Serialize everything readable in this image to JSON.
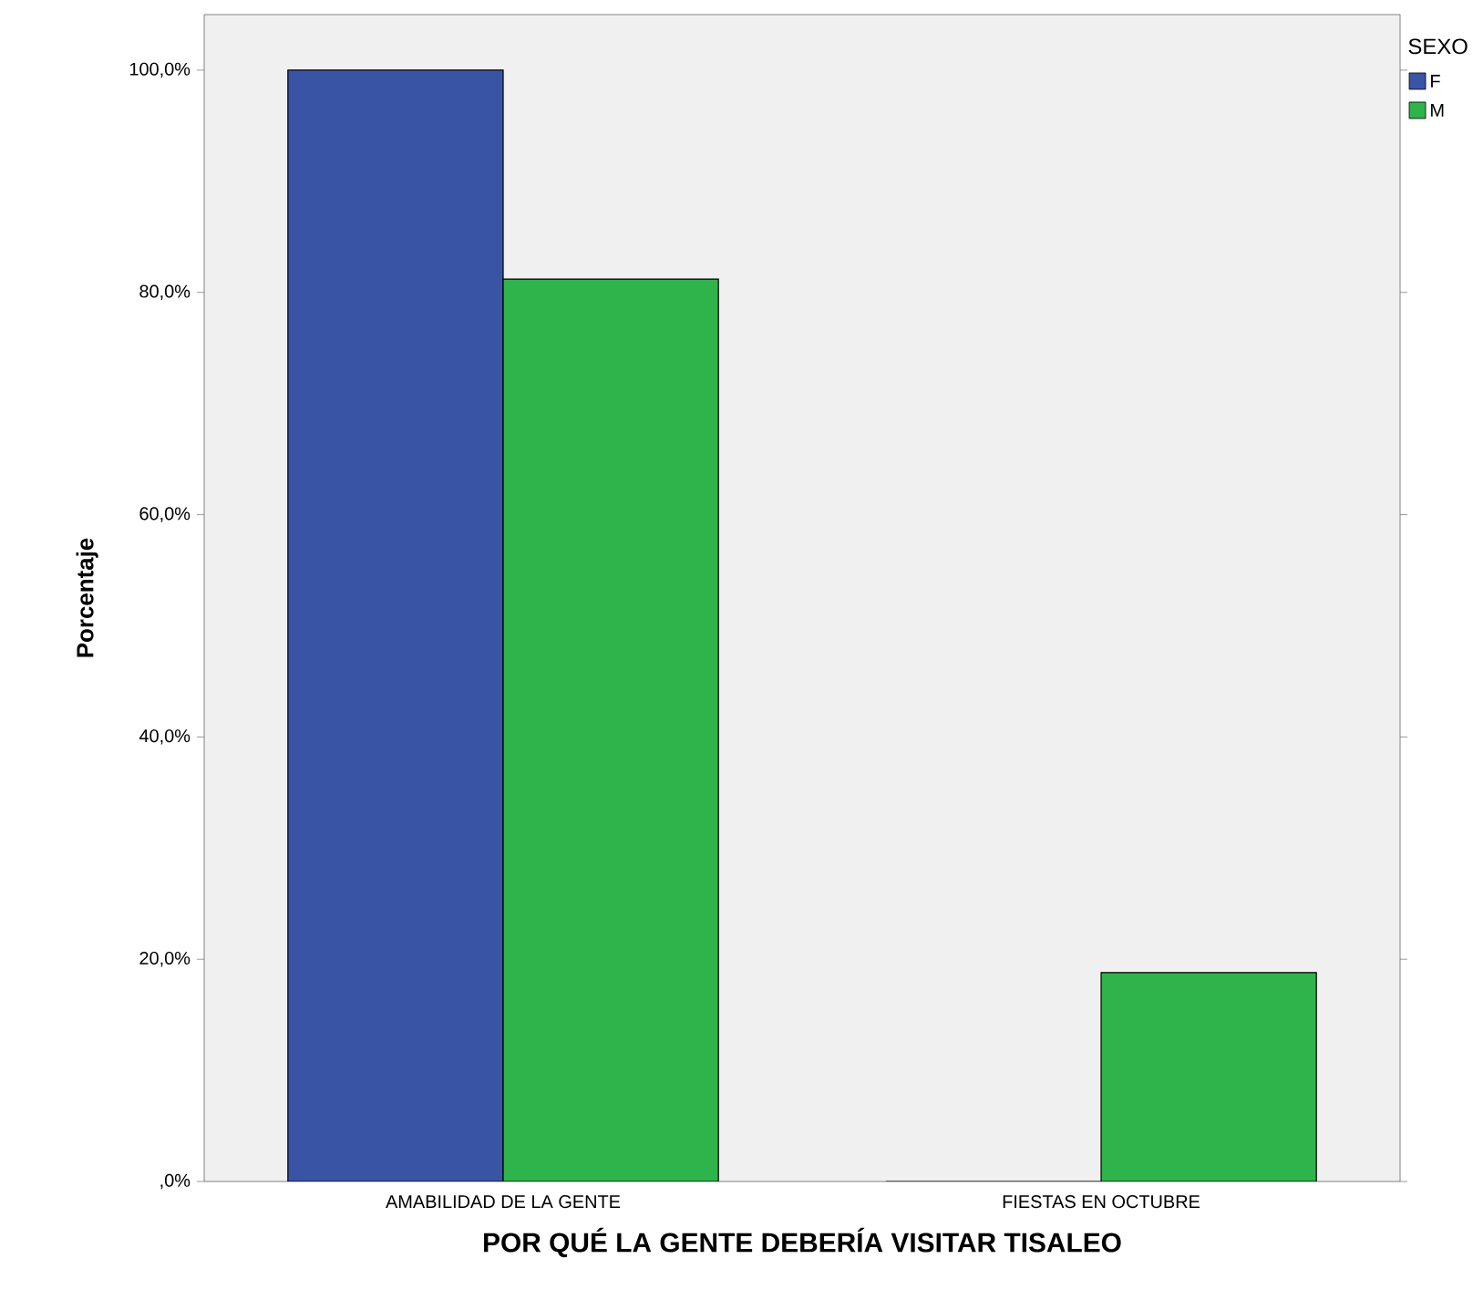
{
  "chart_data": {
    "type": "bar",
    "xlabel": "POR QUÉ LA GENTE DEBERÍA VISITAR TISALEO",
    "ylabel": "Porcentaje",
    "legend_title": "SEXO",
    "legend": "top right",
    "categories": [
      "AMABILIDAD DE LA GENTE",
      "FIESTAS EN OCTUBRE"
    ],
    "series": [
      {
        "name": "F",
        "color": "#3a54a5",
        "values": [
          100,
          0
        ]
      },
      {
        "name": "M",
        "color": "#2fb34b",
        "values": [
          81.2,
          18.8
        ]
      }
    ],
    "ylim": [
      0,
      105
    ],
    "yticks": [
      {
        "value": 0,
        "label": ",0%"
      },
      {
        "value": 20,
        "label": "20,0%"
      },
      {
        "value": 40,
        "label": "40,0%"
      },
      {
        "value": 60,
        "label": "60,0%"
      },
      {
        "value": 80,
        "label": "80,0%"
      },
      {
        "value": 100,
        "label": "100,0%"
      }
    ]
  }
}
